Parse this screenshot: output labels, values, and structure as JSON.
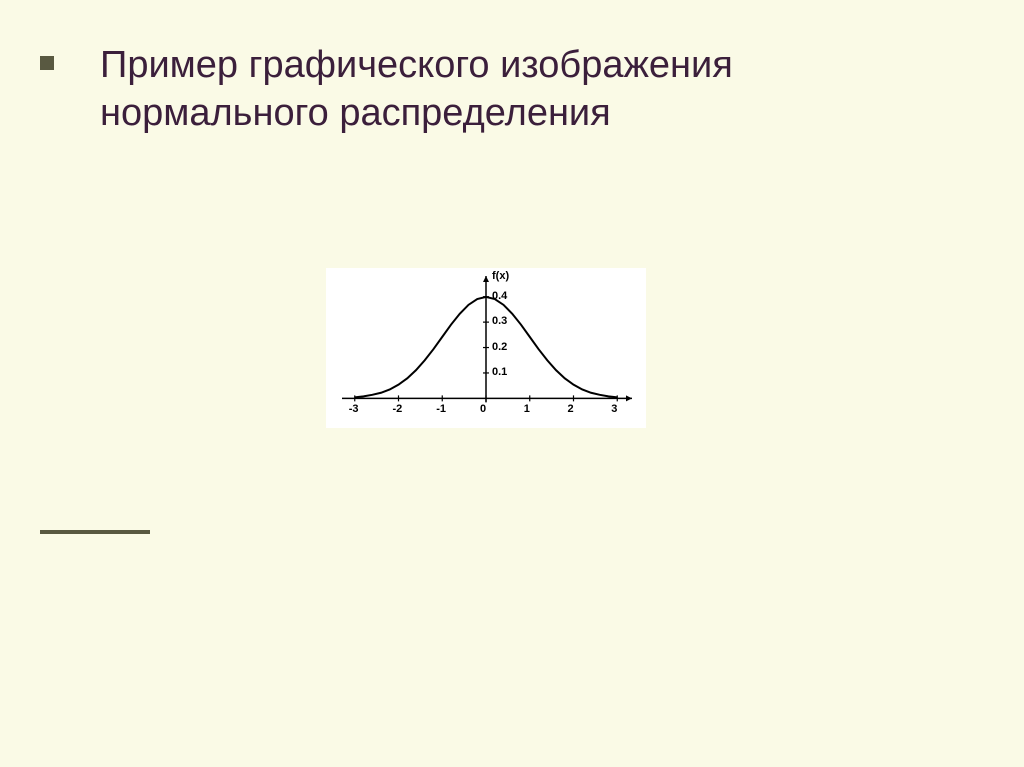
{
  "slide": {
    "title": "Пример графического изображения нормального распределения",
    "background_color": "#fafae6",
    "title_color": "#3b1f3b",
    "title_fontsize": 38,
    "accent_color": "#595941"
  },
  "chart": {
    "type": "line",
    "y_axis_label": "f(x)",
    "background_color": "#ffffff",
    "line_color": "#000000",
    "line_width": 2,
    "x_ticks": [
      -3,
      -2,
      -1,
      0,
      1,
      2,
      3
    ],
    "y_ticks": [
      0.1,
      0.2,
      0.3,
      0.4
    ],
    "xlim": [
      -3.2,
      3.2
    ],
    "ylim": [
      -0.03,
      0.45
    ],
    "tick_fontsize": 11,
    "curve_points": [
      {
        "x": -3.0,
        "y": 0.004
      },
      {
        "x": -2.8,
        "y": 0.008
      },
      {
        "x": -2.6,
        "y": 0.014
      },
      {
        "x": -2.4,
        "y": 0.022
      },
      {
        "x": -2.2,
        "y": 0.035
      },
      {
        "x": -2.0,
        "y": 0.054
      },
      {
        "x": -1.8,
        "y": 0.079
      },
      {
        "x": -1.6,
        "y": 0.111
      },
      {
        "x": -1.4,
        "y": 0.15
      },
      {
        "x": -1.2,
        "y": 0.194
      },
      {
        "x": -1.0,
        "y": 0.242
      },
      {
        "x": -0.8,
        "y": 0.29
      },
      {
        "x": -0.6,
        "y": 0.333
      },
      {
        "x": -0.4,
        "y": 0.368
      },
      {
        "x": -0.2,
        "y": 0.391
      },
      {
        "x": 0.0,
        "y": 0.399
      },
      {
        "x": 0.2,
        "y": 0.391
      },
      {
        "x": 0.4,
        "y": 0.368
      },
      {
        "x": 0.6,
        "y": 0.333
      },
      {
        "x": 0.8,
        "y": 0.29
      },
      {
        "x": 1.0,
        "y": 0.242
      },
      {
        "x": 1.2,
        "y": 0.194
      },
      {
        "x": 1.4,
        "y": 0.15
      },
      {
        "x": 1.6,
        "y": 0.111
      },
      {
        "x": 1.8,
        "y": 0.079
      },
      {
        "x": 2.0,
        "y": 0.054
      },
      {
        "x": 2.2,
        "y": 0.035
      },
      {
        "x": 2.4,
        "y": 0.022
      },
      {
        "x": 2.6,
        "y": 0.014
      },
      {
        "x": 2.8,
        "y": 0.008
      },
      {
        "x": 3.0,
        "y": 0.004
      }
    ]
  }
}
